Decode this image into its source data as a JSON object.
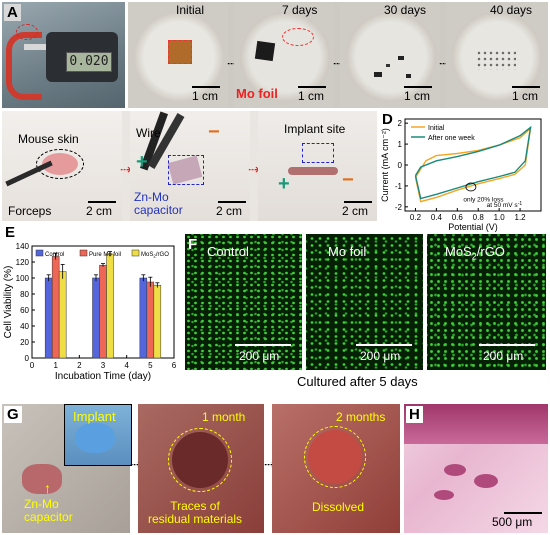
{
  "panels": {
    "A": {
      "label": "A",
      "readout": "0.020"
    },
    "B": {
      "label": "B",
      "times": [
        "Initial",
        "7 days",
        "30 days",
        "40 days"
      ],
      "mo_foil": "Mo foil",
      "scale": "1 cm"
    },
    "C": {
      "label": "C",
      "mouse_skin": "Mouse skin",
      "forceps": "Forceps",
      "wire": "Wire",
      "capacitor": [
        "Zn-Mo",
        "capacitor"
      ],
      "implant_site": "Implant site",
      "plus": "+",
      "minus": "−",
      "scale": "2 cm"
    },
    "D": {
      "label": "D",
      "legend": [
        "Initial",
        "After one week"
      ],
      "annotation": "only 20% loss",
      "rate": "at 50 mV s",
      "rate_sup": "-1"
    },
    "E": {
      "label": "E",
      "legend": [
        "Control",
        "Pure Mo foil",
        "MoS",
        "2",
        "/rGO"
      ]
    },
    "F": {
      "label": "F",
      "titles": [
        "Control",
        "Mo foil",
        "MoS"
      ],
      "sub2": "2",
      "rgo": "/rGO",
      "scale": "200 μm",
      "caption": "Cultured after 5 days"
    },
    "G": {
      "label": "G",
      "implant": "Implant",
      "capacitor": [
        "Zn-Mo",
        "capacitor"
      ],
      "one_month": "1 month",
      "two_months": "2 months",
      "traces": [
        "Traces of",
        "residual materials"
      ],
      "dissolved": "Dissolved"
    },
    "H": {
      "label": "H",
      "scale": "500 μm"
    }
  },
  "chart_data": [
    {
      "type": "line",
      "title": "",
      "xlabel": "Potential (V)",
      "ylabel": "Current (mA cm⁻²)",
      "xlim": [
        0.1,
        1.4
      ],
      "ylim": [
        -2.2,
        2.2
      ],
      "xticks": [
        0.2,
        0.4,
        0.6,
        0.8,
        1.0,
        1.2
      ],
      "yticks": [
        -2,
        -1,
        0,
        1,
        2
      ],
      "series": [
        {
          "name": "Initial",
          "color": "#f5a623",
          "upper": [
            [
              0.2,
              -0.6
            ],
            [
              0.3,
              0.2
            ],
            [
              0.4,
              0.45
            ],
            [
              0.6,
              0.55
            ],
            [
              0.8,
              0.7
            ],
            [
              1.0,
              0.95
            ],
            [
              1.2,
              1.3
            ],
            [
              1.3,
              1.75
            ]
          ],
          "lower": [
            [
              1.3,
              1.75
            ],
            [
              1.25,
              0.0
            ],
            [
              1.15,
              -0.45
            ],
            [
              1.0,
              -0.65
            ],
            [
              0.8,
              -0.9
            ],
            [
              0.6,
              -1.2
            ],
            [
              0.4,
              -1.55
            ],
            [
              0.25,
              -1.75
            ],
            [
              0.2,
              -0.6
            ]
          ]
        },
        {
          "name": "After one week",
          "color": "#1a8a7a",
          "upper": [
            [
              0.2,
              -0.5
            ],
            [
              0.25,
              -0.1
            ],
            [
              0.4,
              0.2
            ],
            [
              0.6,
              0.4
            ],
            [
              0.8,
              0.65
            ],
            [
              1.0,
              0.95
            ],
            [
              1.2,
              1.4
            ],
            [
              1.3,
              1.8
            ]
          ],
          "lower": [
            [
              1.3,
              1.8
            ],
            [
              1.25,
              0.2
            ],
            [
              1.15,
              -0.35
            ],
            [
              1.0,
              -0.55
            ],
            [
              0.8,
              -0.8
            ],
            [
              0.6,
              -1.1
            ],
            [
              0.4,
              -1.4
            ],
            [
              0.25,
              -1.6
            ],
            [
              0.2,
              -0.5
            ]
          ]
        }
      ]
    },
    {
      "type": "bar",
      "title": "",
      "xlabel": "Incubation Time (day)",
      "ylabel": "Cell Viability (%)",
      "xlim": [
        0,
        6
      ],
      "ylim": [
        0,
        140
      ],
      "xticks": [
        0,
        1,
        2,
        3,
        4,
        5,
        6
      ],
      "yticks": [
        0,
        20,
        40,
        60,
        80,
        100,
        120,
        140
      ],
      "categories": [
        1,
        3,
        5
      ],
      "series": [
        {
          "name": "Control",
          "color": "#5566dd",
          "values": [
            100,
            100,
            100
          ],
          "err": [
            4,
            4,
            4
          ]
        },
        {
          "name": "Pure Mo foil",
          "color": "#ee6655",
          "values": [
            127,
            116,
            95
          ],
          "err": [
            4,
            2,
            6
          ]
        },
        {
          "name": "MoS2/rGO",
          "color": "#eedd44",
          "values": [
            108,
            130,
            91
          ],
          "err": [
            9,
            3,
            3
          ]
        }
      ]
    }
  ]
}
